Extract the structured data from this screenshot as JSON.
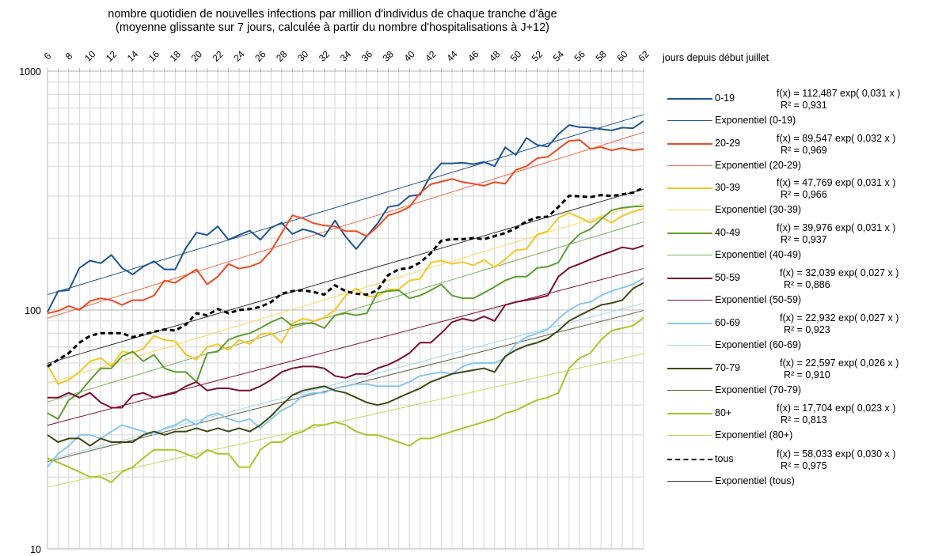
{
  "chart_data": {
    "type": "line",
    "title": "nombre quotidien de nouvelles infections par million d'individus de chaque tranche d'âge",
    "subtitle": "(moyenne glissante sur 7 jours, calculée à partir du nombre d'hospitalisations à J+12)",
    "xlabel": "jours depuis début juillet",
    "ylabel": "",
    "yscale": "log",
    "ylim": [
      10,
      1000
    ],
    "xlim": [
      6,
      62
    ],
    "y_ticks": [
      "10",
      "100",
      "1000"
    ],
    "x_ticks": [
      "6",
      "8",
      "10",
      "12",
      "14",
      "16",
      "18",
      "20",
      "22",
      "24",
      "26",
      "28",
      "30",
      "32",
      "34",
      "36",
      "38",
      "40",
      "42",
      "44",
      "46",
      "48",
      "50",
      "52",
      "54",
      "56",
      "58",
      "60",
      "62"
    ],
    "grid": true,
    "legend_position": "right",
    "x": [
      6,
      7,
      8,
      9,
      10,
      11,
      12,
      13,
      14,
      15,
      16,
      17,
      18,
      19,
      20,
      21,
      22,
      23,
      24,
      25,
      26,
      27,
      28,
      29,
      30,
      31,
      32,
      33,
      34,
      35,
      36,
      37,
      38,
      39,
      40,
      41,
      42,
      43,
      44,
      45,
      46,
      47,
      48,
      49,
      50,
      51,
      52,
      53,
      54,
      55,
      56,
      57,
      58,
      59,
      60,
      61,
      62
    ],
    "series": [
      {
        "name": "0-19",
        "color": "#1f5591",
        "dashed": false,
        "trend": {
          "label": "Exponentiel (0-19)",
          "a": 112.487,
          "b": 0.031,
          "r2": 0.931,
          "equation": "f(x) = 112,487 exp( 0,031 x )",
          "r2_label": "R² = 0,931",
          "color": "#1f5591"
        },
        "values": [
          98,
          120,
          121,
          150,
          161,
          157,
          170,
          150,
          141,
          152,
          160,
          148,
          148,
          182,
          211,
          206,
          224,
          197,
          206,
          215,
          197,
          221,
          232,
          208,
          218,
          212,
          203,
          237,
          203,
          180,
          204,
          230,
          270,
          275,
          300,
          304,
          367,
          411,
          411,
          414,
          408,
          417,
          400,
          480,
          446,
          526,
          491,
          483,
          545,
          595,
          583,
          580,
          572,
          565,
          580,
          577,
          619
        ]
      },
      {
        "name": "20-29",
        "color": "#ef4a24",
        "dashed": false,
        "trend": {
          "label": "Exponentiel (20-29)",
          "a": 89.547,
          "b": 0.032,
          "r2": 0.969,
          "equation": "f(x) = 89,547 exp( 0,032 x )",
          "r2_label": "R² = 0,969",
          "color": "#f26a4a"
        },
        "values": [
          97,
          99,
          104,
          100,
          109,
          112,
          110,
          105,
          110,
          110,
          115,
          133,
          130,
          139,
          148,
          128,
          138,
          156,
          149,
          152,
          158,
          177,
          210,
          249,
          242,
          231,
          226,
          224,
          214,
          214,
          204,
          223,
          249,
          257,
          270,
          309,
          336,
          345,
          354,
          343,
          338,
          331,
          343,
          338,
          386,
          400,
          432,
          438,
          473,
          511,
          515,
          473,
          481,
          466,
          477,
          466,
          473
        ]
      },
      {
        "name": "30-39",
        "color": "#f7c623",
        "dashed": false,
        "trend": {
          "label": "Exponentiel (30-39)",
          "a": 47.769,
          "b": 0.031,
          "r2": 0.966,
          "equation": "f(x) = 47,769 exp( 0,031 x )",
          "r2_label": "R² = 0,966",
          "color": "#f9d95a"
        },
        "values": [
          59,
          49,
          51,
          55,
          61,
          63,
          58,
          67,
          66,
          69,
          78,
          75,
          74,
          65,
          62,
          70,
          72,
          68,
          75,
          72,
          79,
          80,
          73,
          88,
          92,
          90,
          93,
          100,
          115,
          123,
          114,
          114,
          122,
          122,
          133,
          135,
          158,
          161,
          156,
          159,
          154,
          162,
          151,
          163,
          178,
          180,
          207,
          214,
          243,
          255,
          244,
          232,
          245,
          232,
          248,
          258,
          266
        ]
      },
      {
        "name": "40-49",
        "color": "#5c9e31",
        "dashed": false,
        "trend": {
          "label": "Exponentiel (40-49)",
          "a": 39.976,
          "b": 0.031,
          "r2": 0.937,
          "equation": "f(x) = 39,976 exp( 0,031 x )",
          "r2_label": "R² = 0,937",
          "color": "#7fb05a"
        },
        "values": [
          37,
          35,
          42,
          45,
          51,
          57,
          57,
          64,
          67,
          61,
          65,
          57,
          55,
          55,
          50,
          66,
          67,
          75,
          78,
          80,
          84,
          89,
          93,
          86,
          88,
          88,
          84,
          95,
          97,
          95,
          97,
          118,
          120,
          121,
          112,
          115,
          121,
          128,
          115,
          112,
          112,
          118,
          125,
          133,
          138,
          138,
          150,
          152,
          158,
          188,
          208,
          218,
          240,
          262,
          268,
          271,
          272
        ]
      },
      {
        "name": "50-59",
        "color": "#7b0f2f",
        "dashed": false,
        "trend": {
          "label": "Exponentiel (50-59)",
          "a": 32.039,
          "b": 0.027,
          "r2": 0.886,
          "equation": "f(x) = 32,039 exp( 0,027 x )",
          "r2_label": "R² = 0,886",
          "color": "#7b0f2f"
        },
        "values": [
          43,
          43,
          45,
          43,
          45,
          41,
          39,
          39,
          44,
          45,
          43,
          44,
          45,
          48,
          50,
          46,
          47,
          47,
          46,
          46,
          48,
          51,
          55,
          57,
          58,
          58,
          57,
          53,
          52,
          54,
          54,
          57,
          59,
          62,
          66,
          73,
          73,
          80,
          89,
          92,
          90,
          94,
          90,
          105,
          108,
          110,
          112,
          115,
          138,
          150,
          156,
          163,
          170,
          176,
          183,
          180,
          186
        ]
      },
      {
        "name": "60-69",
        "color": "#88c7ee",
        "dashed": false,
        "trend": {
          "label": "Exponentiel (60-69)",
          "a": 22.932,
          "b": 0.027,
          "r2": 0.923,
          "equation": "f(x) = 22,932 exp( 0,027 x )",
          "r2_label": "R² = 0,923",
          "color": "#a5d3f0"
        },
        "values": [
          22,
          25,
          27,
          30,
          30,
          29,
          31,
          33,
          32,
          31,
          30,
          32,
          33,
          35,
          33,
          36,
          37,
          35,
          34,
          35,
          32,
          35,
          38,
          40,
          44,
          45,
          45,
          47,
          48,
          49,
          49,
          48,
          48,
          48,
          50,
          53,
          54,
          55,
          54,
          58,
          60,
          60,
          60,
          63,
          72,
          77,
          80,
          83,
          92,
          100,
          106,
          108,
          115,
          120,
          124,
          128,
          136
        ]
      },
      {
        "name": "70-79",
        "color": "#3c4a14",
        "dashed": false,
        "trend": {
          "label": "Exponentiel (70-79)",
          "a": 22.597,
          "b": 0.026,
          "r2": 0.91,
          "equation": "f(x) = 22,597 exp( 0,026 x )",
          "r2_label": "R² = 0,910",
          "color": "#5d6040"
        },
        "values": [
          30,
          28,
          29,
          29,
          27,
          29,
          28,
          28,
          28,
          30,
          31,
          30,
          31,
          31,
          32,
          31,
          32,
          31,
          32,
          31,
          33,
          36,
          40,
          44,
          46,
          47,
          48,
          46,
          45,
          43,
          41,
          40,
          41,
          43,
          45,
          47,
          50,
          52,
          54,
          55,
          56,
          57,
          55,
          64,
          68,
          71,
          73,
          76,
          82,
          90,
          95,
          100,
          105,
          107,
          110,
          123,
          130
        ]
      },
      {
        "name": "80+",
        "color": "#a8c62a",
        "dashed": false,
        "trend": {
          "label": "Exponentiel (80+)",
          "a": 17.704,
          "b": 0.023,
          "r2": 0.813,
          "equation": "f(x) = 17,704 exp( 0,023 x )",
          "r2_label": "R² = 0,813",
          "color": "#c8d85a"
        },
        "values": [
          24,
          23,
          22,
          21,
          20,
          20,
          19,
          21,
          22,
          24,
          26,
          26,
          26,
          25,
          24,
          26,
          25,
          25,
          22,
          22,
          26,
          28,
          28,
          30,
          31,
          33,
          33,
          34,
          33,
          31,
          30,
          30,
          29,
          28,
          27,
          29,
          29,
          30,
          31,
          32,
          33,
          34,
          35,
          37,
          38,
          40,
          42,
          43,
          45,
          57,
          63,
          66,
          75,
          82,
          84,
          86,
          93
        ]
      },
      {
        "name": "tous",
        "color": "#000000",
        "dashed": true,
        "trend": {
          "label": "Exponentiel (tous)",
          "a": 58.033,
          "b": 0.03,
          "r2": 0.975,
          "equation": "f(x) = 58,033 exp( 0,030 x )",
          "r2_label": "R² = 0,975",
          "color": "#333333"
        },
        "values": [
          58,
          62,
          66,
          73,
          78,
          80,
          80,
          80,
          77,
          79,
          81,
          83,
          82,
          87,
          97,
          95,
          101,
          97,
          100,
          101,
          103,
          108,
          117,
          120,
          121,
          119,
          116,
          127,
          120,
          117,
          116,
          121,
          140,
          148,
          150,
          158,
          173,
          195,
          198,
          198,
          200,
          198,
          204,
          210,
          220,
          235,
          244,
          246,
          270,
          301,
          299,
          297,
          303,
          300,
          305,
          310,
          325
        ]
      }
    ]
  },
  "legend": {
    "items": [
      {
        "label": "0-19",
        "equation": "f(x) = 112,487 exp( 0,031 x )",
        "r2": "R² = 0,931",
        "trend_label": "Exponentiel (0-19)"
      },
      {
        "label": "20-29",
        "equation": "f(x) = 89,547 exp( 0,032 x )",
        "r2": "R² = 0,969",
        "trend_label": "Exponentiel (20-29)"
      },
      {
        "label": "30-39",
        "equation": "f(x) = 47,769 exp( 0,031 x )",
        "r2": "R² = 0,966",
        "trend_label": "Exponentiel (30-39)"
      },
      {
        "label": "40-49",
        "equation": "f(x) = 39,976 exp( 0,031 x )",
        "r2": "R² = 0,937",
        "trend_label": "Exponentiel (40-49)"
      },
      {
        "label": "50-59",
        "equation": "f(x) = 32,039 exp( 0,027 x )",
        "r2": "R² = 0,886",
        "trend_label": "Exponentiel (50-59)"
      },
      {
        "label": "60-69",
        "equation": "f(x) = 22,932 exp( 0,027 x )",
        "r2": "R² = 0,923",
        "trend_label": "Exponentiel (60-69)"
      },
      {
        "label": "70-79",
        "equation": "f(x) = 22,597 exp( 0,026 x )",
        "r2": "R² = 0,910",
        "trend_label": "Exponentiel (70-79)"
      },
      {
        "label": "80+",
        "equation": "f(x) = 17,704 exp( 0,023 x )",
        "r2": "R² = 0,813",
        "trend_label": "Exponentiel (80+)"
      },
      {
        "label": "tous",
        "equation": "f(x) = 58,033 exp( 0,030 x )",
        "r2": "R² = 0,975",
        "trend_label": "Exponentiel (tous)"
      }
    ]
  }
}
